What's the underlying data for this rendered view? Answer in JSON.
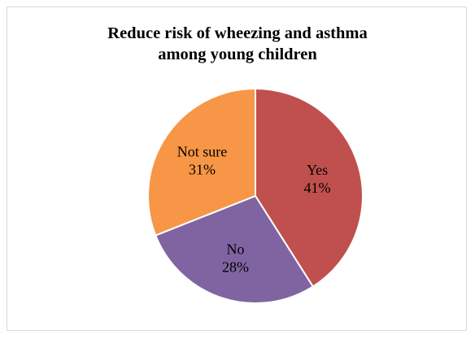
{
  "chart_data": {
    "type": "pie",
    "title_lines": [
      "Reduce risk of wheezing and asthma",
      "among young children"
    ],
    "slices": [
      {
        "label": "Yes",
        "value": 41,
        "percent_label": "41%",
        "color": "#c0504d"
      },
      {
        "label": "No",
        "value": 28,
        "percent_label": "28%",
        "color": "#8064a2"
      },
      {
        "label": "Not sure",
        "value": 31,
        "percent_label": "31%",
        "color": "#f79646"
      }
    ],
    "start_angle_deg": 0,
    "direction": "clockwise",
    "slice_border_color": "#ffffff",
    "legend": "none"
  }
}
